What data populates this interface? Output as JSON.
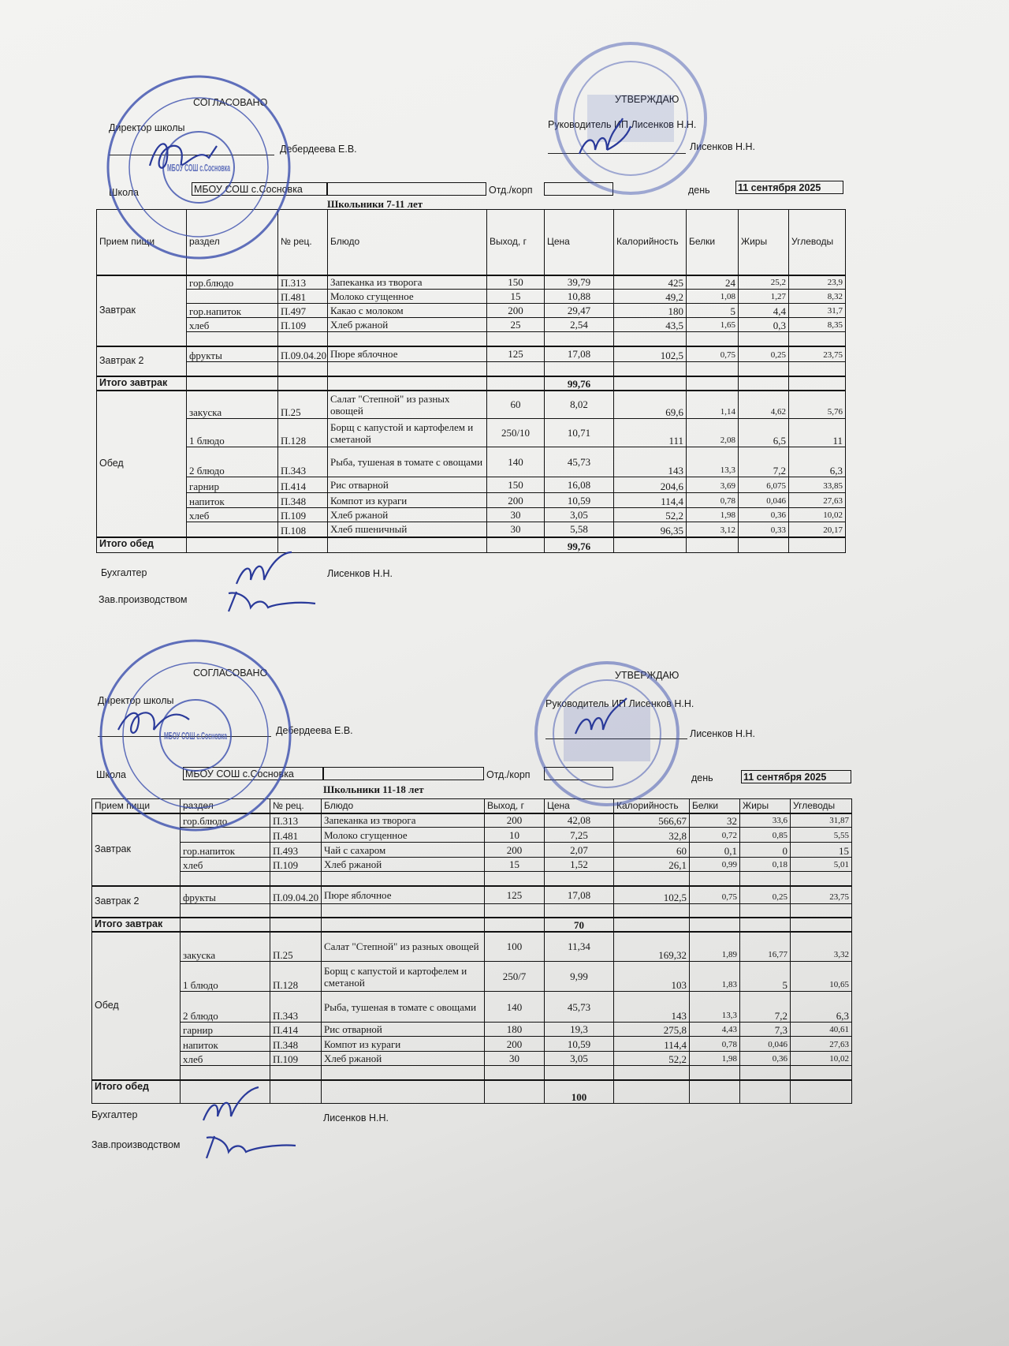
{
  "colors": {
    "stamp_blue": "#3b4fae",
    "ink_blue": "#2a3a9a"
  },
  "sheets": [
    {
      "approved_left": "СОГЛАСОВАНО",
      "director_label": "Директор школы",
      "director_name": "Дебердеева Е.В.",
      "approved_right": "УТВЕРЖДАЮ",
      "head_label": "Руководитель ИП Лисенков Н.Н.",
      "head_name": "Лисенков Н.Н.",
      "school_label": "Школа",
      "school_value": "МБОУ СОШ с.Сосновка",
      "dept_label": "Отд./корп",
      "dept_value": "",
      "day_label": "день",
      "day_value": "11 сентября 2025",
      "title": "Школьники 7-11 лет",
      "stamp_text": "МБОУ СОШ с.Сосновка",
      "columns": [
        "Прием пищи",
        "раздел",
        "№ рец.",
        "Блюдо",
        "Выход, г",
        "Цена",
        "Калорийность",
        "Белки",
        "Жиры",
        "Углеводы"
      ],
      "groups": [
        {
          "meal": "Завтрак",
          "rows": [
            [
              "гор.блюдо",
              "П.313",
              "Запеканка из творога",
              "150",
              "39,79",
              "425",
              "24",
              "25,2",
              "23,9"
            ],
            [
              "",
              "П.481",
              "Молоко сгущенное",
              "15",
              "10,88",
              "49,2",
              "1,08",
              "1,27",
              "8,32"
            ],
            [
              "гор.напиток",
              "П.497",
              "Какао с молоком",
              "200",
              "29,47",
              "180",
              "5",
              "4,4",
              "31,7"
            ],
            [
              "хлеб",
              "П.109",
              "Хлеб ржаной",
              "25",
              "2,54",
              "43,5",
              "1,65",
              "0,3",
              "8,35"
            ],
            [
              "",
              "",
              "",
              "",
              "",
              "",
              "",
              "",
              ""
            ]
          ]
        },
        {
          "meal": "Завтрак 2",
          "rows": [
            [
              "фрукты",
              "П.09.04.20",
              "Пюре яблочное",
              "125",
              "17,08",
              "102,5",
              "0,75",
              "0,25",
              "23,75"
            ],
            [
              "",
              "",
              "",
              "",
              "",
              "",
              "",
              "",
              ""
            ]
          ]
        },
        {
          "total": "Итого завтрак",
          "price": "99,76"
        },
        {
          "meal": "Обед",
          "rows": [
            [
              "закуска",
              "П.25",
              "Салат \"Степной\" из разных овощей",
              "60",
              "8,02",
              "69,6",
              "1,14",
              "4,62",
              "5,76"
            ],
            [
              "1 блюдо",
              "П.128",
              "Борщ с капустой и картофелем и сметаной",
              "250/10",
              "10,71",
              "111",
              "2,08",
              "6,5",
              "11"
            ],
            [
              "2 блюдо",
              "П.343",
              "Рыба, тушеная в томате с овощами",
              "140",
              "45,73",
              "143",
              "13,3",
              "7,2",
              "6,3"
            ],
            [
              "гарнир",
              "П.414",
              "Рис отварной",
              "150",
              "16,08",
              "204,6",
              "3,69",
              "6,075",
              "33,85"
            ],
            [
              "напиток",
              "П.348",
              "Компот из кураги",
              "200",
              "10,59",
              "114,4",
              "0,78",
              "0,046",
              "27,63"
            ],
            [
              "хлеб",
              "П.109",
              "Хлеб ржаной",
              "30",
              "3,05",
              "52,2",
              "1,98",
              "0,36",
              "10,02"
            ],
            [
              "",
              "П.108",
              "Хлеб пшеничный",
              "30",
              "5,58",
              "96,35",
              "3,12",
              "0,33",
              "20,17"
            ]
          ]
        },
        {
          "total": "Итого обед",
          "price": "99,76"
        }
      ],
      "accountant_label": "Бухгалтер",
      "accountant_name": "Лисенков Н.Н.",
      "production_label": "Зав.производством"
    },
    {
      "approved_left": "СОГЛАСОВАНО",
      "director_label": "Директор школы",
      "director_name": "Дебердеева Е.В.",
      "approved_right": "УТВЕРЖДАЮ",
      "head_label": "Руководитель ИП Лисенков Н.Н.",
      "head_name": "Лисенков Н.Н.",
      "school_label": "Школа",
      "school_value": "МБОУ СОШ с.Сосновка",
      "dept_label": "Отд./корп",
      "dept_value": "",
      "day_label": "день",
      "day_value": "11 сентября 2025",
      "title": "Школьники 11-18 лет",
      "stamp_text": "МБОУ СОШ с.Сосновка",
      "columns": [
        "Прием пищи",
        "раздел",
        "№ рец.",
        "Блюдо",
        "Выход, г",
        "Цена",
        "Калорийность",
        "Белки",
        "Жиры",
        "Углеводы"
      ],
      "groups": [
        {
          "meal": "Завтрак",
          "rows": [
            [
              "гор.блюдо",
              "П.313",
              "Запеканка из творога",
              "200",
              "42,08",
              "566,67",
              "32",
              "33,6",
              "31,87"
            ],
            [
              "",
              "П.481",
              "Молоко сгущенное",
              "10",
              "7,25",
              "32,8",
              "0,72",
              "0,85",
              "5,55"
            ],
            [
              "гор.напиток",
              "П.493",
              "Чай с сахаром",
              "200",
              "2,07",
              "60",
              "0,1",
              "0",
              "15"
            ],
            [
              "хлеб",
              "П.109",
              "Хлеб ржаной",
              "15",
              "1,52",
              "26,1",
              "0,99",
              "0,18",
              "5,01"
            ],
            [
              "",
              "",
              "",
              "",
              "",
              "",
              "",
              "",
              ""
            ]
          ]
        },
        {
          "meal": "Завтрак 2",
          "rows": [
            [
              "фрукты",
              "П.09.04.20",
              "Пюре яблочное",
              "125",
              "17,08",
              "102,5",
              "0,75",
              "0,25",
              "23,75"
            ],
            [
              "",
              "",
              "",
              "",
              "",
              "",
              "",
              "",
              ""
            ]
          ]
        },
        {
          "total": "Итого завтрак",
          "price": "70"
        },
        {
          "meal": "Обед",
          "rows": [
            [
              "закуска",
              "П.25",
              "Салат \"Степной\" из разных овощей",
              "100",
              "11,34",
              "169,32",
              "1,89",
              "16,77",
              "3,32"
            ],
            [
              "1 блюдо",
              "П.128",
              "Борщ с капустой и картофелем и сметаной",
              "250/7",
              "9,99",
              "103",
              "1,83",
              "5",
              "10,65"
            ],
            [
              "2 блюдо",
              "П.343",
              "Рыба, тушеная в томате с овощами",
              "140",
              "45,73",
              "143",
              "13,3",
              "7,2",
              "6,3"
            ],
            [
              "гарнир",
              "П.414",
              "Рис отварной",
              "180",
              "19,3",
              "275,8",
              "4,43",
              "7,3",
              "40,61"
            ],
            [
              "напиток",
              "П.348",
              "Компот из кураги",
              "200",
              "10,59",
              "114,4",
              "0,78",
              "0,046",
              "27,63"
            ],
            [
              "хлеб",
              "П.109",
              "Хлеб ржаной",
              "30",
              "3,05",
              "52,2",
              "1,98",
              "0,36",
              "10,02"
            ],
            [
              "",
              "",
              "",
              "",
              "",
              "",
              "",
              "",
              ""
            ]
          ]
        },
        {
          "total": "Итого обед",
          "price": "100"
        }
      ],
      "accountant_label": "Бухгалтер",
      "accountant_name": "Лисенков Н.Н.",
      "production_label": "Зав.производством"
    }
  ]
}
